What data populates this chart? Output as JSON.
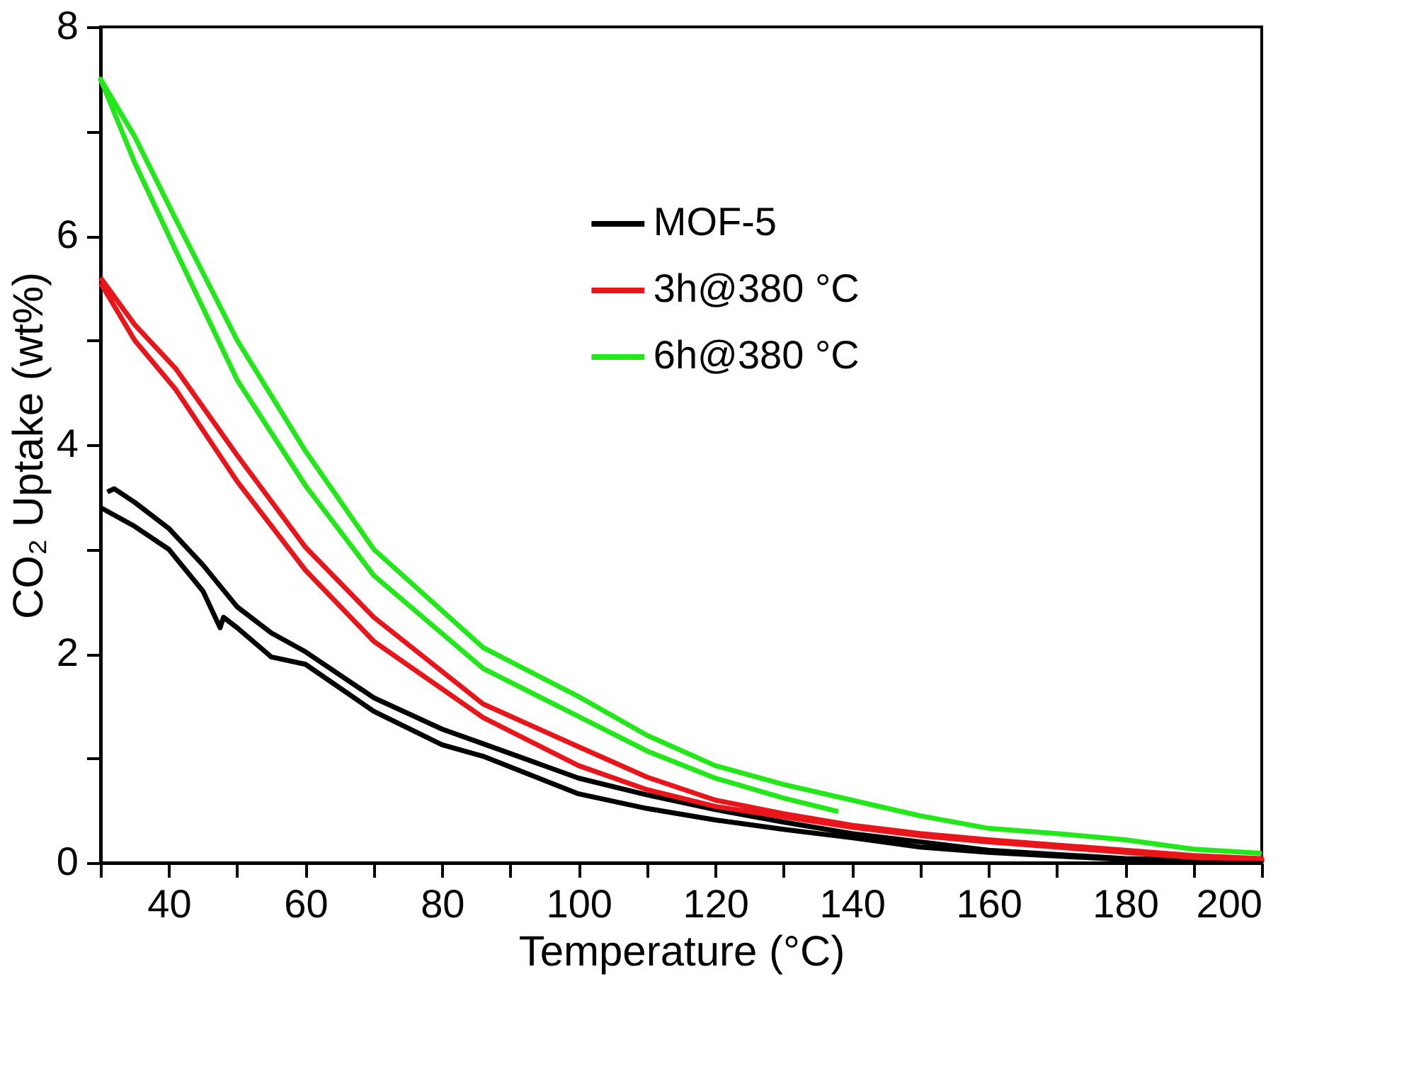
{
  "chart_data": {
    "type": "line",
    "xlabel": "Temperature (°C)",
    "ylabel": "CO₂ Uptake (wt%)",
    "xlim": [
      30,
      200
    ],
    "ylim": [
      0,
      8
    ],
    "xticks": [
      {
        "value": 30,
        "label": null
      },
      40,
      {
        "value": 50,
        "label": null
      },
      60,
      {
        "value": 70,
        "label": null
      },
      80,
      {
        "value": 90,
        "label": null
      },
      100,
      {
        "value": 110,
        "label": null
      },
      120,
      {
        "value": 130,
        "label": null
      },
      140,
      {
        "value": 150,
        "label": null
      },
      160,
      {
        "value": 170,
        "label": null
      },
      180,
      {
        "value": 190,
        "label": null
      },
      200
    ],
    "yticks": [
      0,
      {
        "value": 1,
        "label": null
      },
      2,
      {
        "value": 3,
        "label": null
      },
      4,
      {
        "value": 5,
        "label": null
      },
      6,
      {
        "value": 7,
        "label": null
      },
      8
    ],
    "grid": false,
    "legend": "top right",
    "marker": "none",
    "line_style": "solid",
    "series": [
      {
        "name": "MOF-5",
        "color": "#000000",
        "x": [
          31,
          32,
          35,
          40,
          45,
          50,
          55,
          60,
          70,
          80,
          86,
          100,
          110,
          120,
          130,
          140,
          150,
          160,
          170,
          180,
          190,
          200,
          180,
          160,
          150,
          140,
          130,
          120,
          110,
          100,
          86,
          80,
          70,
          60,
          55,
          50,
          48,
          47.5,
          45,
          40,
          35,
          30
        ],
        "values": [
          3.55,
          3.58,
          3.45,
          3.2,
          2.85,
          2.45,
          2.2,
          2.02,
          1.58,
          1.28,
          1.14,
          0.81,
          0.65,
          0.51,
          0.39,
          0.28,
          0.2,
          0.12,
          0.08,
          0.04,
          0.03,
          0.02,
          0.03,
          0.1,
          0.15,
          0.24,
          0.32,
          0.41,
          0.52,
          0.66,
          1.02,
          1.13,
          1.45,
          1.9,
          1.97,
          2.25,
          2.35,
          2.25,
          2.6,
          3.0,
          3.22,
          3.4
        ]
      },
      {
        "name": "3h@380 °C",
        "color": "#e8161a",
        "x": [
          30,
          35,
          41,
          50,
          60,
          70,
          86,
          100,
          110,
          120,
          130,
          140,
          150,
          160,
          170,
          180,
          190,
          200,
          190,
          180,
          170,
          160,
          150,
          140,
          130,
          120,
          110,
          100,
          86,
          70,
          60,
          50,
          41,
          35,
          30
        ],
        "values": [
          5.6,
          5.15,
          4.73,
          3.9,
          3.02,
          2.35,
          1.52,
          1.11,
          0.82,
          0.6,
          0.47,
          0.36,
          0.28,
          0.22,
          0.17,
          0.12,
          0.07,
          0.04,
          0.05,
          0.1,
          0.15,
          0.2,
          0.26,
          0.34,
          0.44,
          0.54,
          0.7,
          0.93,
          1.39,
          2.12,
          2.8,
          3.65,
          4.53,
          5.0,
          5.55
        ]
      },
      {
        "name": "6h@380 °C",
        "color": "#22e81a",
        "x": [
          138,
          130,
          120,
          110,
          100,
          86,
          70,
          60,
          50,
          41,
          35,
          30,
          35,
          41,
          50,
          60,
          70,
          86,
          100,
          110,
          120,
          130,
          140,
          150,
          160,
          170,
          180,
          190,
          200
        ],
        "values": [
          0.49,
          0.62,
          0.81,
          1.07,
          1.4,
          1.86,
          2.75,
          3.61,
          4.62,
          5.86,
          6.7,
          7.5,
          6.95,
          6.16,
          5.0,
          3.94,
          3.0,
          2.06,
          1.59,
          1.22,
          0.93,
          0.75,
          0.6,
          0.45,
          0.33,
          0.28,
          0.22,
          0.13,
          0.09
        ]
      }
    ]
  }
}
